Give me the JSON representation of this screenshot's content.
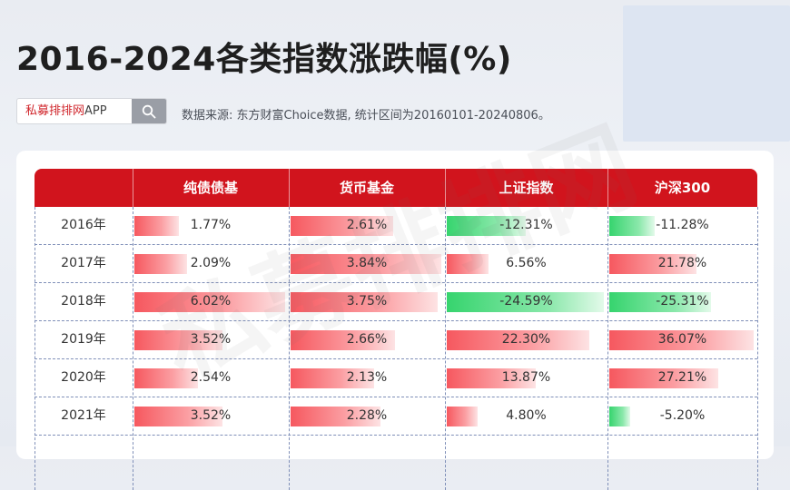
{
  "title": "2016-2024各类指数涨跌幅(%)",
  "search": {
    "brand": "私募排排网",
    "suffix": "APP",
    "icon": "search-icon"
  },
  "source_note": "数据来源: 东方财富Choice数据, 统计区间为20160101-20240806。",
  "watermark": "私募排排网",
  "colors": {
    "header": "#d1141d",
    "positive": "#f6585f",
    "negative": "#36d46e"
  },
  "chart_data": {
    "type": "table",
    "columns": [
      "纯债债基",
      "货币基金",
      "上证指数",
      "沪深300"
    ],
    "rows": [
      {
        "year": "2016年",
        "labels": [
          "1.77%",
          "2.61%",
          "-12.31%",
          "-11.28%"
        ],
        "values": [
          1.77,
          2.61,
          -12.31,
          -11.28
        ]
      },
      {
        "year": "2017年",
        "labels": [
          "2.09%",
          "3.84%",
          "6.56%",
          "21.78%"
        ],
        "values": [
          2.09,
          3.84,
          6.56,
          21.78
        ]
      },
      {
        "year": "2018年",
        "labels": [
          "6.02%",
          "3.75%",
          "-24.59%",
          "-25.31%"
        ],
        "values": [
          6.02,
          3.75,
          -24.59,
          -25.31
        ]
      },
      {
        "year": "2019年",
        "labels": [
          "3.52%",
          "2.66%",
          "22.30%",
          "36.07%"
        ],
        "values": [
          3.52,
          2.66,
          22.3,
          36.07
        ]
      },
      {
        "year": "2020年",
        "labels": [
          "2.54%",
          "2.13%",
          "13.87%",
          "27.21%"
        ],
        "values": [
          2.54,
          2.13,
          13.87,
          27.21
        ]
      },
      {
        "year": "2021年",
        "labels": [
          "3.52%",
          "2.28%",
          "4.80%",
          "-5.20%"
        ],
        "values": [
          3.52,
          2.28,
          4.8,
          -5.2
        ]
      }
    ]
  }
}
